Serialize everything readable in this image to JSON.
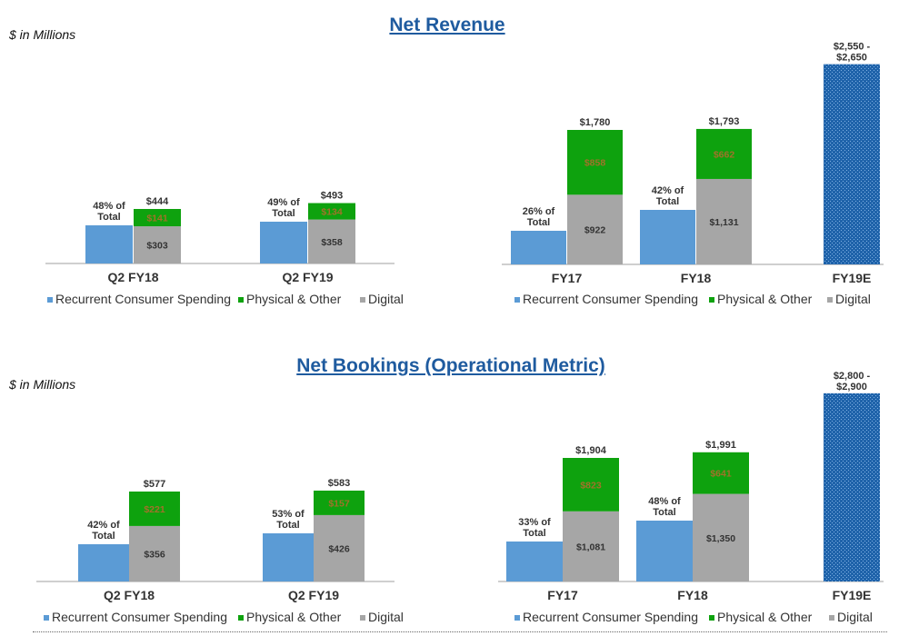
{
  "sections": [
    {
      "title": "Net Revenue",
      "units": "$ in Millions"
    },
    {
      "title": "Net Bookings (Operational Metric)",
      "units": "$ in Millions"
    }
  ],
  "legend": [
    "Recurrent Consumer Spending",
    "Physical & Other",
    "Digital"
  ],
  "colors": {
    "recurrent": "#5b9bd5",
    "physical": "#0ea20e",
    "digital": "#a6a6a6",
    "estimate": "#1f63aa"
  },
  "chart_data": [
    {
      "type": "bar",
      "stacked": true,
      "title": "Net Revenue",
      "categories": [
        "Q2 FY18",
        "Q2 FY19"
      ],
      "series": [
        {
          "name": "Recurrent Consumer Spending",
          "values": [
            null,
            null
          ],
          "labels": [
            "48% of Total",
            "49% of Total"
          ]
        },
        {
          "name": "Digital",
          "values": [
            303,
            358
          ]
        },
        {
          "name": "Physical & Other",
          "values": [
            141,
            134
          ]
        }
      ],
      "totals": [
        444,
        493
      ]
    },
    {
      "type": "bar",
      "stacked": true,
      "title": "Net Revenue",
      "categories": [
        "FY17",
        "FY18",
        "FY19E"
      ],
      "series": [
        {
          "name": "Recurrent Consumer Spending",
          "values": [
            null,
            null,
            null
          ],
          "labels": [
            "26% of Total",
            "42% of Total",
            ""
          ]
        },
        {
          "name": "Digital",
          "values": [
            922,
            1131,
            null
          ]
        },
        {
          "name": "Physical & Other",
          "values": [
            858,
            662,
            null
          ]
        }
      ],
      "totals": [
        1780,
        1793,
        null
      ],
      "estimate": {
        "category": "FY19E",
        "range": [
          2550,
          2650
        ],
        "label": "$2,550 - $2,650"
      }
    },
    {
      "type": "bar",
      "stacked": true,
      "title": "Net Bookings (Operational Metric)",
      "categories": [
        "Q2 FY18",
        "Q2 FY19"
      ],
      "series": [
        {
          "name": "Recurrent Consumer Spending",
          "values": [
            null,
            null
          ],
          "labels": [
            "42% of Total",
            "53% of Total"
          ]
        },
        {
          "name": "Digital",
          "values": [
            356,
            426
          ]
        },
        {
          "name": "Physical & Other",
          "values": [
            221,
            157
          ]
        }
      ],
      "totals": [
        577,
        583
      ]
    },
    {
      "type": "bar",
      "stacked": true,
      "title": "Net Bookings (Operational Metric)",
      "categories": [
        "FY17",
        "FY18",
        "FY19E"
      ],
      "series": [
        {
          "name": "Recurrent Consumer Spending",
          "values": [
            null,
            null,
            null
          ],
          "labels": [
            "33% of Total",
            "48% of Total",
            ""
          ]
        },
        {
          "name": "Digital",
          "values": [
            1081,
            1350,
            null
          ]
        },
        {
          "name": "Physical & Other",
          "values": [
            823,
            641,
            null
          ]
        }
      ],
      "totals": [
        1904,
        1991,
        null
      ],
      "estimate": {
        "category": "FY19E",
        "range": [
          2800,
          2900
        ],
        "label": "$2,800 - $2,900"
      }
    }
  ]
}
